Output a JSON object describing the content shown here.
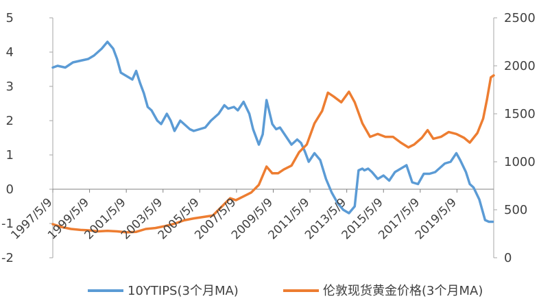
{
  "chart_data": {
    "type": "line",
    "title": "",
    "xlabel": "",
    "ylabel": "",
    "y2label": "",
    "grid": false,
    "legend_position": "bottom",
    "x_tick_labels": [
      "1997/5/9",
      "1999/5/9",
      "2001/5/9",
      "2003/5/9",
      "2005/5/9",
      "2007/5/9",
      "2009/5/9",
      "2011/5/9",
      "2013/5/9",
      "2015/5/9",
      "2017/5/9",
      "2019/5/9"
    ],
    "y_left": {
      "ylim": [
        -2,
        5
      ],
      "ticks": [
        "-2",
        "-1",
        "0",
        "1",
        "2",
        "3",
        "4",
        "5"
      ]
    },
    "y_right": {
      "ylim": [
        0,
        2500
      ],
      "ticks": [
        "0",
        "500",
        "1000",
        "1500",
        "2000",
        "2500"
      ]
    },
    "x_range": [
      1997.35,
      2020.35
    ],
    "series": [
      {
        "name": "10YTIPS(3个月MA)",
        "axis": "left",
        "color": "#5B9BD5",
        "x": [
          1997.35,
          1997.6,
          1998.0,
          1998.4,
          1998.8,
          1999.2,
          1999.5,
          1999.9,
          2000.2,
          2000.5,
          2000.7,
          2000.9,
          2001.2,
          2001.5,
          2001.7,
          2001.9,
          2002.1,
          2002.3,
          2002.5,
          2002.8,
          2003.0,
          2003.3,
          2003.5,
          2003.7,
          2004.0,
          2004.2,
          2004.5,
          2004.7,
          2005.0,
          2005.3,
          2005.6,
          2006.0,
          2006.3,
          2006.5,
          2006.8,
          2007.0,
          2007.3,
          2007.6,
          2007.8,
          2008.1,
          2008.3,
          2008.5,
          2008.8,
          2009.0,
          2009.2,
          2009.5,
          2009.8,
          2010.1,
          2010.3,
          2010.5,
          2010.7,
          2011.0,
          2011.3,
          2011.6,
          2011.9,
          2012.2,
          2012.5,
          2012.8,
          2013.1,
          2013.3,
          2013.5,
          2013.6,
          2013.8,
          2014.0,
          2014.3,
          2014.6,
          2014.9,
          2015.2,
          2015.5,
          2015.8,
          2016.1,
          2016.4,
          2016.7,
          2017.0,
          2017.3,
          2017.5,
          2017.8,
          2018.1,
          2018.4,
          2018.6,
          2018.9,
          2019.1,
          2019.3,
          2019.6,
          2019.9,
          2020.1,
          2020.3
        ],
        "values": [
          3.55,
          3.6,
          3.55,
          3.7,
          3.75,
          3.8,
          3.9,
          4.1,
          4.3,
          4.1,
          3.8,
          3.4,
          3.3,
          3.2,
          3.45,
          3.1,
          2.8,
          2.4,
          2.3,
          2.0,
          1.9,
          2.2,
          2.0,
          1.7,
          2.0,
          1.9,
          1.75,
          1.7,
          1.75,
          1.8,
          2.0,
          2.2,
          2.45,
          2.35,
          2.4,
          2.3,
          2.55,
          2.2,
          1.75,
          1.3,
          1.6,
          2.6,
          1.9,
          1.75,
          1.8,
          1.55,
          1.3,
          1.45,
          1.35,
          1.1,
          0.8,
          1.05,
          0.85,
          0.3,
          -0.1,
          -0.4,
          -0.6,
          -0.7,
          -0.5,
          0.55,
          0.6,
          0.55,
          0.6,
          0.5,
          0.3,
          0.4,
          0.25,
          0.5,
          0.6,
          0.7,
          0.2,
          0.15,
          0.45,
          0.45,
          0.5,
          0.6,
          0.75,
          0.8,
          1.05,
          0.85,
          0.5,
          0.15,
          0.05,
          -0.3,
          -0.9,
          -0.95,
          -0.95
        ]
      },
      {
        "name": "伦敦现货黄金价格(3个月MA)",
        "axis": "right",
        "color": "#ED7D31",
        "x": [
          1997.35,
          1997.8,
          1998.3,
          1998.8,
          1999.3,
          1999.7,
          2000.2,
          2000.7,
          2001.2,
          2001.7,
          2002.2,
          2002.7,
          2003.2,
          2003.7,
          2004.2,
          2004.7,
          2005.2,
          2005.7,
          2006.2,
          2006.6,
          2006.9,
          2007.3,
          2007.7,
          2008.1,
          2008.5,
          2008.8,
          2009.1,
          2009.4,
          2009.8,
          2010.2,
          2010.6,
          2011.0,
          2011.4,
          2011.7,
          2012.0,
          2012.4,
          2012.8,
          2013.1,
          2013.5,
          2013.9,
          2014.3,
          2014.7,
          2015.1,
          2015.5,
          2015.9,
          2016.2,
          2016.6,
          2016.9,
          2017.2,
          2017.6,
          2018.0,
          2018.4,
          2018.8,
          2019.1,
          2019.5,
          2019.8,
          2020.0,
          2020.2,
          2020.35
        ],
        "values": [
          350,
          320,
          300,
          290,
          285,
          275,
          280,
          275,
          265,
          270,
          300,
          310,
          330,
          355,
          390,
          410,
          425,
          440,
          540,
          620,
          600,
          640,
          680,
          760,
          950,
          880,
          880,
          920,
          960,
          1100,
          1180,
          1400,
          1530,
          1720,
          1680,
          1620,
          1730,
          1620,
          1400,
          1260,
          1290,
          1260,
          1260,
          1200,
          1150,
          1180,
          1250,
          1330,
          1240,
          1260,
          1310,
          1290,
          1250,
          1200,
          1300,
          1450,
          1650,
          1880,
          1900
        ]
      }
    ]
  }
}
